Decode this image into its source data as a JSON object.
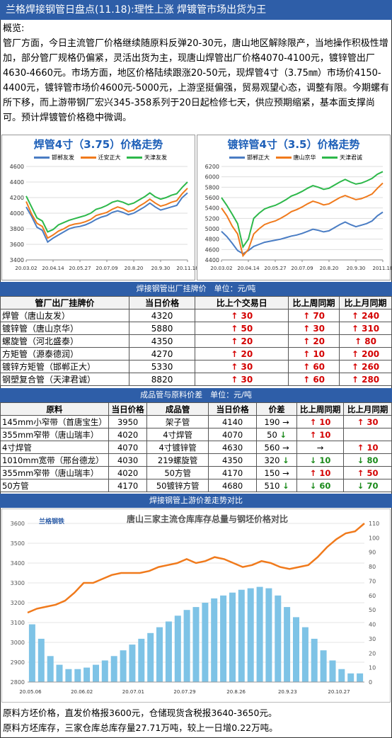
{
  "title": "兰格焊接钢管日盘点(11.18):理性上涨 焊镀管市场出货为王",
  "summary": {
    "label": "概览:",
    "text": "管厂方面，今日主流管厂价格继续随原料反弹20-30元，唐山地区解除限产，当地操作积极性增加，部分管厂规格仍偏紧，灵活出货为主，现唐山焊管出厂价格4070-4100元，镀锌管出厂4630-4660元。市场方面，地区价格陆续跟涨20-50元，现焊管4寸（3.75㎜）市场价4150-4400元，镀锌管市场价4600元-5000元，上游坚挺偏强，贸易观望心态，调整有限。今期螺有所下移，而上游带钢厂宏兴345-358系列于20日起检修七天，供应预期缩紧，基本面支撑尚可。预计焊镀管价格稳中微调。"
  },
  "colors": {
    "blue": "#4a7dc4",
    "orange": "#f07a1c",
    "green": "#2db84a",
    "accent": "#2e5ea8",
    "bar": "#7ec3e6",
    "up": "#d40000",
    "down": "#1a8a1a"
  },
  "chart_data": [
    {
      "type": "line",
      "title": "焊管4寸（3.75）价格走势",
      "legend": [
        "邯郸友发",
        "迁安正大",
        "天津友发"
      ],
      "xticks": [
        "20.03.02",
        "20.04.14",
        "20.05.27",
        "20.07.09",
        "20.8.20",
        "20.9.30",
        "20.11.18"
      ],
      "ylim": [
        3400,
        4600
      ],
      "yticks": [
        3400,
        3600,
        3800,
        4000,
        4200,
        4400,
        4600
      ],
      "grid": true,
      "series": [
        {
          "name": "邯郸友发",
          "values": [
            4080,
            3960,
            3820,
            3780,
            3630,
            3680,
            3720,
            3760,
            3800,
            3820,
            3830,
            3850,
            3880,
            3920,
            3950,
            3970,
            4010,
            4030,
            4010,
            3980,
            4000,
            4040,
            4080,
            4130,
            4080,
            4040,
            4060,
            4080,
            4100,
            4200,
            4260
          ]
        },
        {
          "name": "迁安正大",
          "values": [
            4150,
            3990,
            3870,
            3830,
            3680,
            3720,
            3770,
            3800,
            3840,
            3860,
            3870,
            3890,
            3920,
            3970,
            3990,
            4010,
            4050,
            4080,
            4060,
            4020,
            4040,
            4090,
            4130,
            4180,
            4130,
            4090,
            4110,
            4140,
            4160,
            4250,
            4320
          ]
        },
        {
          "name": "天津友发",
          "values": [
            4220,
            4080,
            3940,
            3900,
            3760,
            3790,
            3850,
            3880,
            3910,
            3930,
            3950,
            3970,
            4000,
            4050,
            4070,
            4100,
            4140,
            4160,
            4140,
            4110,
            4130,
            4170,
            4210,
            4260,
            4210,
            4180,
            4200,
            4230,
            4250,
            4330,
            4400
          ]
        }
      ]
    },
    {
      "type": "line",
      "title": "镀锌管4寸（3.5）价格走势",
      "legend": [
        "邯郸正大",
        "唐山京华",
        "天津君诚"
      ],
      "xticks": [
        "20.03.02",
        "20.04.14",
        "20.05.27",
        "20.07.09",
        "20.8.20",
        "20.9.30",
        "2011.18"
      ],
      "ylim": [
        4400,
        6200
      ],
      "yticks": [
        4400,
        4600,
        4800,
        5000,
        5200,
        5400,
        5600,
        5800,
        6000,
        6200
      ],
      "grid": true,
      "series": [
        {
          "name": "邯郸正大",
          "values": [
            4950,
            4850,
            4720,
            4580,
            4520,
            4580,
            4660,
            4700,
            4740,
            4760,
            4780,
            4800,
            4830,
            4860,
            4880,
            4910,
            4950,
            4990,
            4970,
            4940,
            4960,
            5020,
            5080,
            5130,
            5080,
            5040,
            5070,
            5100,
            5150,
            5250,
            5320
          ]
        },
        {
          "name": "唐山京华",
          "values": [
            5400,
            5250,
            5050,
            4900,
            4480,
            4600,
            4900,
            5000,
            5080,
            5120,
            5150,
            5200,
            5260,
            5330,
            5370,
            5420,
            5480,
            5530,
            5500,
            5460,
            5480,
            5540,
            5600,
            5640,
            5600,
            5560,
            5580,
            5620,
            5670,
            5780,
            5880
          ]
        },
        {
          "name": "天津君诚",
          "values": [
            5600,
            5450,
            5280,
            5100,
            4650,
            4800,
            5200,
            5300,
            5380,
            5420,
            5450,
            5500,
            5560,
            5630,
            5670,
            5720,
            5780,
            5830,
            5800,
            5760,
            5780,
            5840,
            5900,
            5950,
            5900,
            5860,
            5880,
            5920,
            5970,
            6050,
            6100
          ]
        }
      ]
    },
    {
      "type": "bar+line",
      "title": "唐山三家主流仓库库存总量与钢坯价格对比",
      "xticks": [
        "20.05.06",
        "20.06.02",
        "20.07.01",
        "20.07.29",
        "20.8.26",
        "20.9.23",
        "20.10.27"
      ],
      "ylim_left": [
        2800,
        3600
      ],
      "yticks_left": [
        2800,
        2900,
        3000,
        3100,
        3200,
        3300,
        3400,
        3500,
        3600
      ],
      "ylim_right": [
        0,
        110
      ],
      "yticks_right": [
        0,
        10,
        20,
        30,
        40,
        50,
        60,
        70,
        80,
        90,
        100,
        110
      ],
      "line_values": [
        3150,
        3170,
        3180,
        3190,
        3210,
        3250,
        3300,
        3300,
        3320,
        3340,
        3350,
        3350,
        3350,
        3360,
        3380,
        3390,
        3400,
        3420,
        3400,
        3410,
        3430,
        3420,
        3400,
        3380,
        3390,
        3410,
        3400,
        3380,
        3370,
        3380,
        3390,
        3430,
        3480,
        3520,
        3550,
        3560,
        3600
      ],
      "bar_values": [
        40,
        30,
        18,
        12,
        9,
        9,
        10,
        12,
        15,
        18,
        22,
        26,
        30,
        34,
        38,
        42,
        46,
        50,
        52,
        55,
        58,
        60,
        62,
        64,
        65,
        66,
        65,
        60,
        52,
        45,
        38,
        30,
        22,
        15,
        9,
        6,
        6
      ]
    }
  ],
  "section_factory": "焊接钢管出厂挂牌价　单位：元/吨",
  "factory_table": {
    "headers": [
      "管厂出厂挂牌价",
      "当日价格",
      "比上个交易日",
      "比上周同期",
      "比上月同期"
    ],
    "rows": [
      {
        "name": "焊管（唐山友发）",
        "price": "4320",
        "d1": "30",
        "d2": "70",
        "d3": "240"
      },
      {
        "name": "镀锌管（唐山京华）",
        "price": "5880",
        "d1": "50",
        "d2": "30",
        "d3": "310"
      },
      {
        "name": "螺旋管（河北盛泰）",
        "price": "4350",
        "d1": "20",
        "d2": "20",
        "d3": "80"
      },
      {
        "name": "方矩管（源泰德润）",
        "price": "4270",
        "d1": "20",
        "d2": "10",
        "d3": "200"
      },
      {
        "name": "镀锌方矩管（邯郸正大）",
        "price": "5330",
        "d1": "30",
        "d2": "60",
        "d3": "260"
      },
      {
        "name": "钢塑复合管（天津君诚）",
        "price": "8820",
        "d1": "30",
        "d2": "60",
        "d3": "280"
      }
    ]
  },
  "section_spread": "成品管与原料价差　单位：元/吨",
  "spread_table": {
    "headers": [
      "原料",
      "当日价格",
      "成品管",
      "当日价格",
      "价差",
      "比上周同期",
      "比上月同期"
    ],
    "rows": [
      {
        "raw": "145mm小窄带（首唐宝生）",
        "rp": "3950",
        "prod": "架子管",
        "pp": "4140",
        "diff": "190",
        "diff_dir": "→",
        "w": "10",
        "w_dir": "up",
        "m": "30",
        "m_dir": "up"
      },
      {
        "raw": "355mm窄带（唐山瑞丰）",
        "rp": "4020",
        "prod": "4寸焊管",
        "pp": "4070",
        "diff": "50",
        "diff_dir": "↓",
        "w": "10",
        "w_dir": "up",
        "m": "",
        "m_dir": "none"
      },
      {
        "raw": "4寸焊管",
        "rp": "4070",
        "prod": "4寸镀锌管",
        "pp": "4630",
        "diff": "560",
        "diff_dir": "→",
        "w": "→",
        "w_dir": "flat",
        "m": "10",
        "m_dir": "up"
      },
      {
        "raw": "1010mm宽带（邢台德龙）",
        "rp": "4030",
        "prod": "219螺旋管",
        "pp": "4350",
        "diff": "320",
        "diff_dir": "↓",
        "w": "10",
        "w_dir": "down",
        "m": "80",
        "m_dir": "down"
      },
      {
        "raw": "355mm窄带（唐山瑞丰）",
        "rp": "4020",
        "prod": "50方管",
        "pp": "4170",
        "diff": "150",
        "diff_dir": "→",
        "w": "10",
        "w_dir": "up",
        "m": "50",
        "m_dir": "up"
      },
      {
        "raw": "50方管",
        "rp": "4170",
        "prod": "50镀锌方管",
        "pp": "4680",
        "diff": "510",
        "diff_dir": "↓",
        "w": "60",
        "w_dir": "down",
        "m": "70",
        "m_dir": "down"
      }
    ]
  },
  "section_upstream": "焊接钢管上游价差走势对比",
  "logo_text": "兰格钢铁",
  "footer": {
    "line1": "原料方坯价格，直发价格报3600元，仓储现货含税报3640-3650元。",
    "line2": "原料方坯库存，三家仓库总库存量27.71万吨，较上一日增0.22万吨。"
  }
}
